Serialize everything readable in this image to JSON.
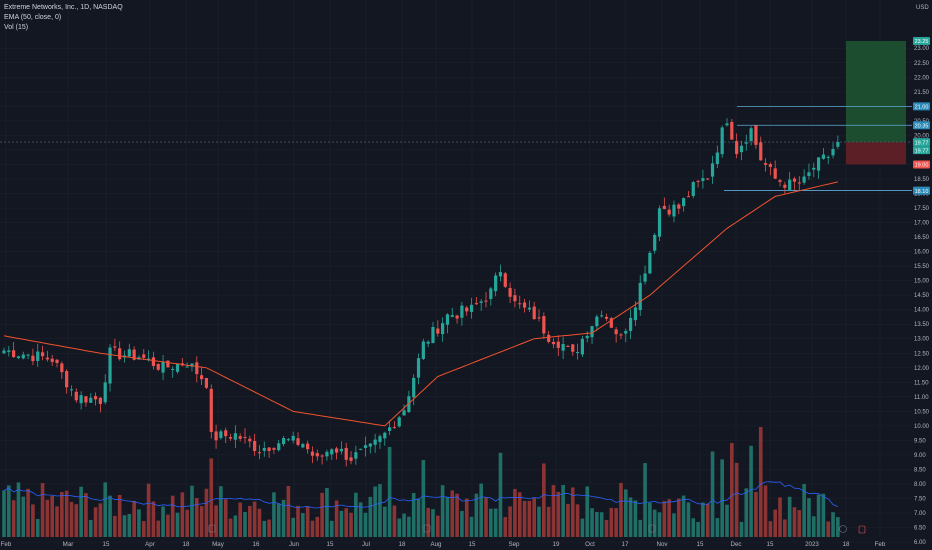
{
  "legend": {
    "title": "Extreme Networks, Inc., 1D, NASDAQ",
    "ema": "EMA (50, close, 0)",
    "vol": "Vol (15)"
  },
  "colors": {
    "background": "#131722",
    "grid": "#1e222d",
    "up": "#26a69a",
    "down": "#ef5350",
    "volume_up": "#1f6f67",
    "volume_down": "#8c3434",
    "ema": "#f0522e",
    "vol_ma": "#2962ff",
    "level_line": "#5ea8d8",
    "profit_zone": "#1b4d2e",
    "loss_zone": "#5c1f26",
    "axis_text": "#b2b5be"
  },
  "chart_data": {
    "type": "candlestick",
    "currency": "USD",
    "y_axis_ticks": [
      "23.00",
      "22.50",
      "22.00",
      "21.50",
      "21.00",
      "20.50",
      "20.00",
      "19.50",
      "19.00",
      "18.50",
      "18.00",
      "17.50",
      "17.00",
      "16.50",
      "16.00",
      "15.50",
      "15.00",
      "14.50",
      "14.00",
      "13.50",
      "13.00",
      "12.50",
      "12.00",
      "11.50",
      "11.00",
      "10.50",
      "10.00",
      "9.50",
      "9.00",
      "8.50",
      "8.00",
      "7.50",
      "7.00",
      "6.50",
      "6.00"
    ],
    "ylim": [
      5.9,
      23.8
    ],
    "x_axis_labels": [
      "Feb",
      "Mar",
      "15",
      "Apr",
      "18",
      "May",
      "16",
      "Jun",
      "15",
      "Jul",
      "18",
      "Aug",
      "15",
      "Sep",
      "19",
      "Oct",
      "17",
      "Nov",
      "15",
      "Dec",
      "15",
      "2023",
      "18",
      "Feb"
    ],
    "price_badges": [
      {
        "value": "23.25",
        "kind": "target"
      },
      {
        "value": "21.00",
        "kind": "level"
      },
      {
        "value": "20.35",
        "kind": "level"
      },
      {
        "value": "19.77",
        "kind": "current"
      },
      {
        "value": "19.77",
        "kind": "current"
      },
      {
        "value": "19.00",
        "kind": "stop"
      },
      {
        "value": "18.10",
        "kind": "level"
      }
    ],
    "close_series_keypoints": [
      [
        0,
        12.6
      ],
      [
        10,
        12.3
      ],
      [
        15,
        11.0
      ],
      [
        20,
        10.9
      ],
      [
        22,
        12.5
      ],
      [
        28,
        12.4
      ],
      [
        33,
        12.0
      ],
      [
        38,
        12.2
      ],
      [
        42,
        11.5
      ],
      [
        43,
        9.6
      ],
      [
        48,
        9.7
      ],
      [
        53,
        9.2
      ],
      [
        58,
        9.5
      ],
      [
        62,
        9.4
      ],
      [
        65,
        8.8
      ],
      [
        68,
        9.3
      ],
      [
        72,
        8.9
      ],
      [
        76,
        9.2
      ],
      [
        79,
        9.7
      ],
      [
        83,
        10.6
      ],
      [
        87,
        12.8
      ],
      [
        92,
        13.8
      ],
      [
        97,
        14.0
      ],
      [
        101,
        14.6
      ],
      [
        103,
        15.4
      ],
      [
        106,
        14.2
      ],
      [
        110,
        13.8
      ],
      [
        113,
        13.1
      ],
      [
        116,
        12.8
      ],
      [
        118,
        12.4
      ],
      [
        121,
        13.3
      ],
      [
        124,
        14.0
      ],
      [
        126,
        13.5
      ],
      [
        128,
        13.0
      ],
      [
        131,
        14.3
      ],
      [
        134,
        16.0
      ],
      [
        136,
        17.5
      ],
      [
        140,
        17.5
      ],
      [
        143,
        18.2
      ],
      [
        146,
        18.6
      ],
      [
        148,
        19.6
      ],
      [
        150,
        20.6
      ],
      [
        152,
        19.5
      ],
      [
        155,
        20.2
      ],
      [
        157,
        19.2
      ],
      [
        160,
        18.5
      ],
      [
        163,
        18.3
      ],
      [
        166,
        18.4
      ],
      [
        168,
        18.9
      ],
      [
        171,
        19.3
      ],
      [
        173,
        19.77
      ]
    ],
    "ema_keypoints": [
      [
        0,
        13.1
      ],
      [
        20,
        12.5
      ],
      [
        42,
        12.0
      ],
      [
        60,
        10.5
      ],
      [
        79,
        10.0
      ],
      [
        90,
        11.7
      ],
      [
        110,
        13.0
      ],
      [
        122,
        13.2
      ],
      [
        134,
        14.5
      ],
      [
        150,
        16.8
      ],
      [
        160,
        17.9
      ],
      [
        173,
        18.4
      ]
    ],
    "horizontal_levels": [
      21.0,
      20.35,
      19.77,
      18.1
    ],
    "position_tool": {
      "entry": 19.77,
      "target": 23.25,
      "stop": 19.0
    }
  }
}
